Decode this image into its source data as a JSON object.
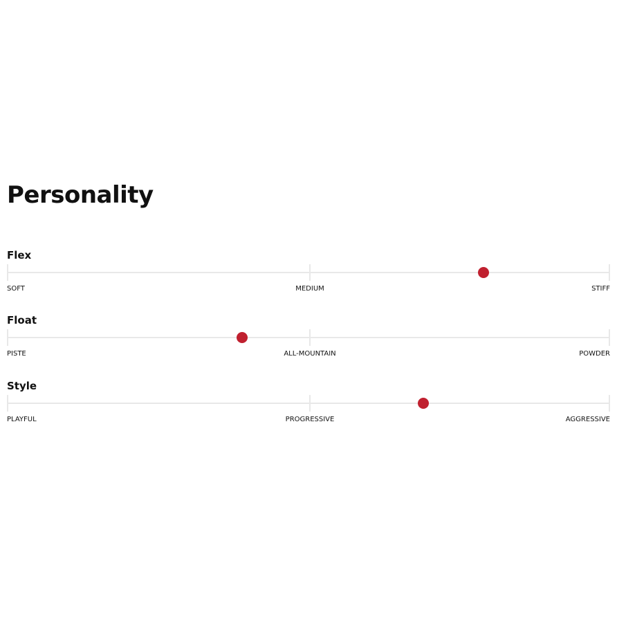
{
  "title": "Personality",
  "accent_color": "#c0202f",
  "sliders": [
    {
      "label": "Flex",
      "min_label": "SOFT",
      "mid_label": "MEDIUM",
      "max_label": "STIFF",
      "value": 0.79
    },
    {
      "label": "Float",
      "min_label": "PISTE",
      "mid_label": "ALL-MOUNTAIN",
      "max_label": "POWDER",
      "value": 0.39
    },
    {
      "label": "Style",
      "min_label": "PLAYFUL",
      "mid_label": "PROGRESSIVE",
      "max_label": "AGGRESSIVE",
      "value": 0.69
    }
  ]
}
